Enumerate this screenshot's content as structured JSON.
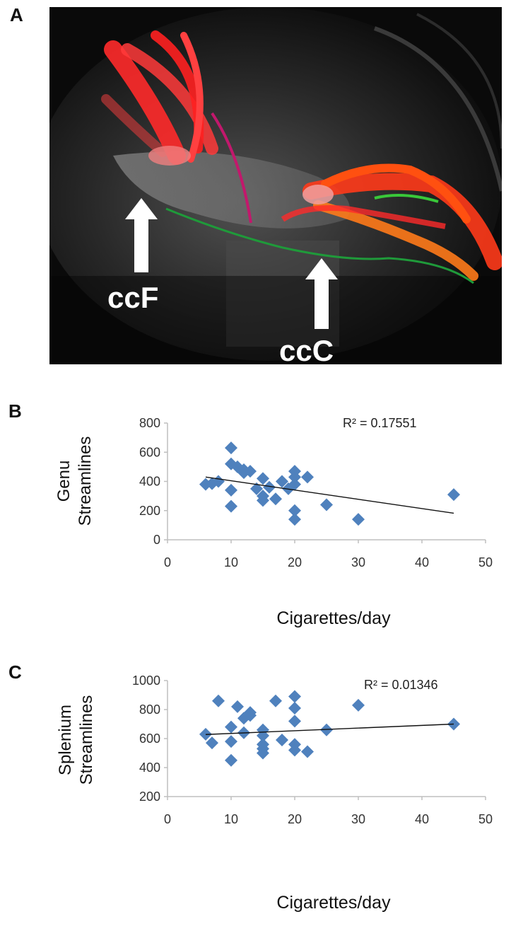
{
  "panels": {
    "a": "A",
    "b": "B",
    "c": "C"
  },
  "image_panel": {
    "label_left": "ccF",
    "label_right": "ccC"
  },
  "colors": {
    "marker": "#4f81bd",
    "trendline": "#111111",
    "axis": "#bfbfbf",
    "tract_main": "#ff2a2a",
    "tract_magenta": "#c2186c",
    "tract_green": "#1f9a3a",
    "tract_orange": "#ff7a1a"
  },
  "chart_data": [
    {
      "type": "scatter",
      "ylabel_line1": "Genu",
      "ylabel_line2": "Streamlines",
      "xlabel": "Cigarettes/day",
      "annotation": "R² = 0.17551",
      "xlim": [
        0,
        50
      ],
      "ylim": [
        0,
        800
      ],
      "xticks": [
        0,
        10,
        20,
        30,
        40,
        50
      ],
      "yticks": [
        0,
        200,
        400,
        600,
        800
      ],
      "grid": false,
      "trendline": {
        "x": [
          6,
          45
        ],
        "y": [
          430,
          182
        ]
      },
      "points": [
        [
          6,
          380
        ],
        [
          7,
          385
        ],
        [
          8,
          400
        ],
        [
          10,
          630
        ],
        [
          10,
          520
        ],
        [
          10,
          340
        ],
        [
          10,
          230
        ],
        [
          11,
          500
        ],
        [
          12,
          480
        ],
        [
          12,
          460
        ],
        [
          13,
          470
        ],
        [
          14,
          350
        ],
        [
          15,
          420
        ],
        [
          15,
          300
        ],
        [
          15,
          270
        ],
        [
          16,
          360
        ],
        [
          17,
          280
        ],
        [
          18,
          400
        ],
        [
          19,
          350
        ],
        [
          20,
          470
        ],
        [
          20,
          430
        ],
        [
          20,
          380
        ],
        [
          20,
          200
        ],
        [
          20,
          140
        ],
        [
          22,
          430
        ],
        [
          25,
          240
        ],
        [
          30,
          140
        ],
        [
          45,
          310
        ]
      ]
    },
    {
      "type": "scatter",
      "ylabel_line1": "Splenium",
      "ylabel_line2": "Streamlines",
      "xlabel": "Cigarettes/day",
      "annotation": "R² = 0.01346",
      "xlim": [
        0,
        50
      ],
      "ylim": [
        200,
        1000
      ],
      "xticks": [
        0,
        10,
        20,
        30,
        40,
        50
      ],
      "yticks": [
        200,
        400,
        600,
        800,
        1000
      ],
      "grid": false,
      "trendline": {
        "x": [
          6,
          45
        ],
        "y": [
          628,
          700
        ]
      },
      "points": [
        [
          6,
          630
        ],
        [
          7,
          570
        ],
        [
          8,
          860
        ],
        [
          10,
          680
        ],
        [
          10,
          580
        ],
        [
          10,
          450
        ],
        [
          11,
          820
        ],
        [
          12,
          740
        ],
        [
          12,
          640
        ],
        [
          13,
          760
        ],
        [
          13,
          780
        ],
        [
          15,
          660
        ],
        [
          15,
          620
        ],
        [
          15,
          560
        ],
        [
          15,
          530
        ],
        [
          15,
          500
        ],
        [
          17,
          860
        ],
        [
          18,
          590
        ],
        [
          20,
          890
        ],
        [
          20,
          810
        ],
        [
          20,
          720
        ],
        [
          20,
          560
        ],
        [
          20,
          520
        ],
        [
          22,
          510
        ],
        [
          25,
          660
        ],
        [
          30,
          830
        ],
        [
          45,
          700
        ]
      ]
    }
  ]
}
